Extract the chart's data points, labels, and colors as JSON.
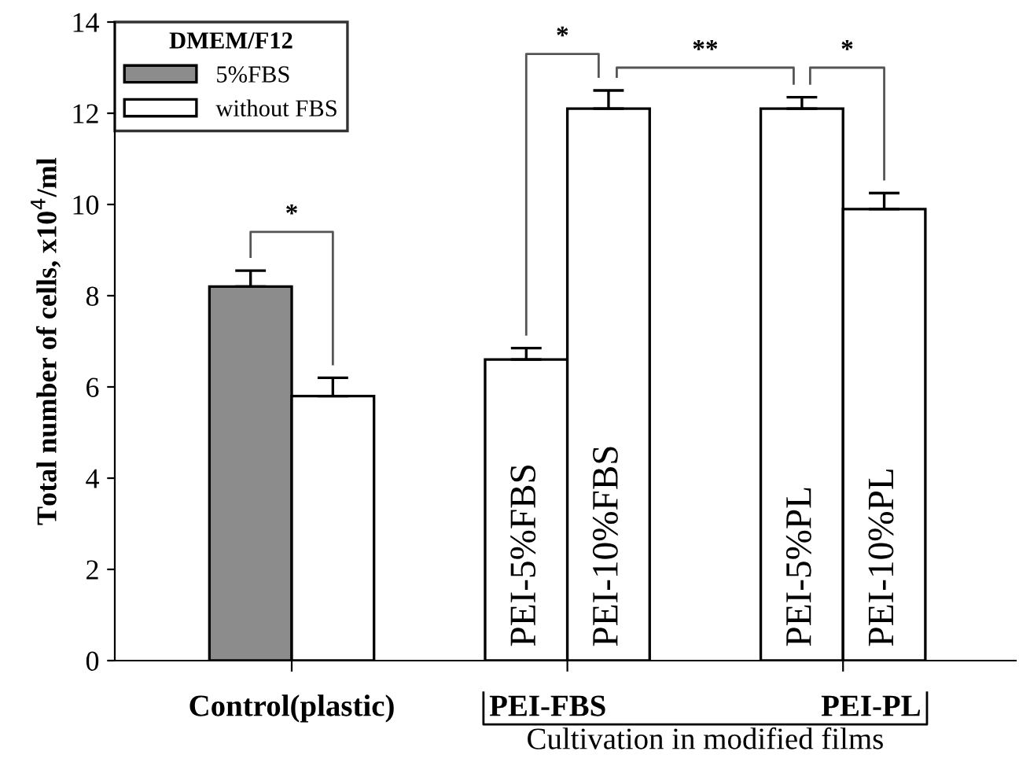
{
  "chart_data": {
    "type": "bar",
    "ylabel": "Total number of cells, x10$^{4}$/ml",
    "xlabel": "Cultivation in modified films",
    "legend_title": "DMEM/F12",
    "legend": "top left",
    "categories": [
      null,
      null,
      "PEI-5%FBS",
      "PEI-10%FBS",
      "PEI-5%PL",
      "PEI-10%PL"
    ],
    "series": [
      {
        "name": "5%FBS",
        "color": "#8c8c8c",
        "values": [
          8.2,
          null,
          null,
          null,
          null,
          null
        ],
        "errors": [
          0.35,
          null,
          null,
          null,
          null,
          null
        ]
      },
      {
        "name": "without FBS",
        "color": "#ffffff",
        "values": [
          null,
          5.8,
          6.6,
          12.1,
          12.1,
          9.9
        ],
        "errors": [
          null,
          0.4,
          0.25,
          0.4,
          0.25,
          0.35
        ]
      }
    ],
    "ylim": [
      0,
      14
    ],
    "yticks": [
      0,
      2,
      4,
      6,
      8,
      10,
      12,
      14
    ],
    "grid": false,
    "annotations": [
      "Control(plastic)",
      "PEI-FBS",
      "PEI-PL",
      "*",
      "*",
      "**",
      "*"
    ]
  }
}
